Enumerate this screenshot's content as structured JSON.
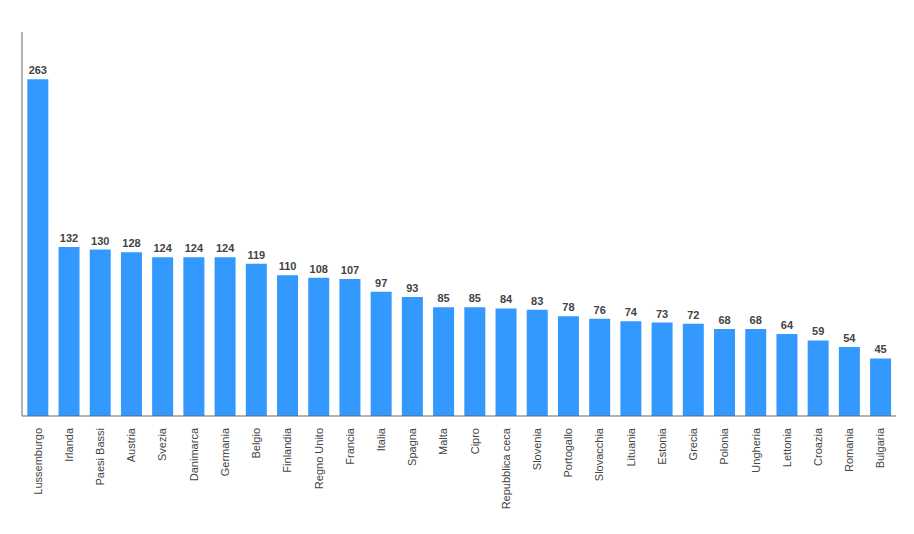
{
  "chart_data": {
    "type": "bar",
    "categories": [
      "Lussemburgo",
      "Irlanda",
      "Paesi Bassi",
      "Austria",
      "Svezia",
      "Danimarca",
      "Germania",
      "Belgio",
      "Finlandia",
      "Regno Unito",
      "Francia",
      "Italia",
      "Spagna",
      "Malta",
      "Cipro",
      "Repubblica ceca",
      "Slovenia",
      "Portogallo",
      "Slovacchia",
      "Lituania",
      "Estonia",
      "Grecia",
      "Polonia",
      "Ungheria",
      "Lettonia",
      "Croazia",
      "Romania",
      "Bulgaria"
    ],
    "values": [
      263,
      132,
      130,
      128,
      124,
      124,
      124,
      119,
      110,
      108,
      107,
      97,
      93,
      85,
      85,
      84,
      83,
      78,
      76,
      74,
      73,
      72,
      68,
      68,
      64,
      59,
      54,
      45
    ],
    "color": "#3399ff",
    "ylim": [
      0,
      300
    ],
    "data_labels": true,
    "tick_labels": "x",
    "grid": false
  }
}
